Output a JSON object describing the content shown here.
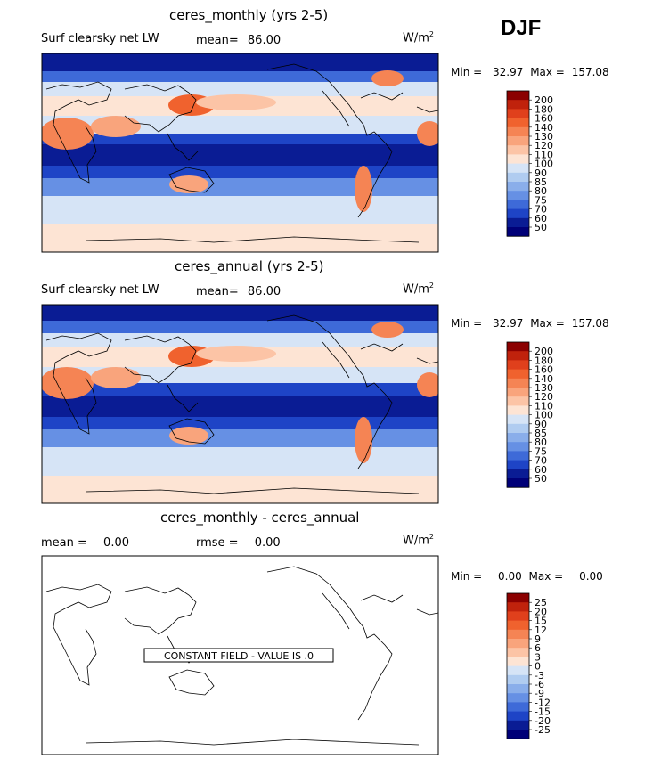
{
  "season": "DJF",
  "panels": [
    {
      "title": "ceres_monthly (yrs 2-5)",
      "left_label": "Surf clearsky net LW",
      "mean_label": "mean=",
      "mean_value": "86.00",
      "units": "W/m",
      "units_sup": "2",
      "min_label": "Min =",
      "min_value": "32.97",
      "max_label": "Max =",
      "max_value": "157.08",
      "colorbar": [
        "200",
        "180",
        "160",
        "140",
        "130",
        "120",
        "110",
        "100",
        "90",
        "85",
        "80",
        "75",
        "70",
        "60",
        "50"
      ]
    },
    {
      "title": "ceres_annual (yrs 2-5)",
      "left_label": "Surf clearsky net LW",
      "mean_label": "mean=",
      "mean_value": "86.00",
      "units": "W/m",
      "units_sup": "2",
      "min_label": "Min =",
      "min_value": "32.97",
      "max_label": "Max =",
      "max_value": "157.08",
      "colorbar": [
        "200",
        "180",
        "160",
        "140",
        "130",
        "120",
        "110",
        "100",
        "90",
        "85",
        "80",
        "75",
        "70",
        "60",
        "50"
      ]
    },
    {
      "title": "ceres_monthly - ceres_annual",
      "mean_label": "mean =",
      "mean_value": "0.00",
      "rmse_label": "rmse =",
      "rmse_value": "0.00",
      "units": "W/m",
      "units_sup": "2",
      "min_label": "Min =",
      "min_value": "0.00",
      "max_label": "Max =",
      "max_value": "0.00",
      "constant_note": "CONSTANT FIELD - VALUE IS .0",
      "colorbar": [
        "25",
        "20",
        "15",
        "12",
        "9",
        "6",
        "3",
        "0",
        "-3",
        "-6",
        "-9",
        "-12",
        "-15",
        "-20",
        "-25"
      ]
    }
  ],
  "colors": {
    "scale": [
      "#8b0000",
      "#c0220c",
      "#e0401c",
      "#f0622e",
      "#f58454",
      "#f9a47c",
      "#fcc4a6",
      "#fde4d4",
      "#d6e4f6",
      "#b0ccf0",
      "#8aaeea",
      "#6690e4",
      "#3e6ad8",
      "#1e44c6",
      "#0a1c94",
      "#000078"
    ]
  },
  "chart_data": [
    {
      "type": "heatmap",
      "title": "ceres_monthly (yrs 2-5)",
      "variable": "Surf clearsky net LW",
      "units": "W/m2",
      "mean": 86.0,
      "min": 32.97,
      "max": 157.08,
      "levels": [
        50,
        60,
        70,
        75,
        80,
        85,
        90,
        100,
        110,
        120,
        130,
        140,
        160,
        180,
        200
      ]
    },
    {
      "type": "heatmap",
      "title": "ceres_annual (yrs 2-5)",
      "variable": "Surf clearsky net LW",
      "units": "W/m2",
      "mean": 86.0,
      "min": 32.97,
      "max": 157.08,
      "levels": [
        50,
        60,
        70,
        75,
        80,
        85,
        90,
        100,
        110,
        120,
        130,
        140,
        160,
        180,
        200
      ]
    },
    {
      "type": "heatmap",
      "title": "ceres_monthly - ceres_annual",
      "units": "W/m2",
      "mean": 0.0,
      "rmse": 0.0,
      "min": 0.0,
      "max": 0.0,
      "levels": [
        -25,
        -20,
        -15,
        -12,
        -9,
        -6,
        -3,
        0,
        3,
        6,
        9,
        12,
        15,
        20,
        25
      ]
    }
  ]
}
